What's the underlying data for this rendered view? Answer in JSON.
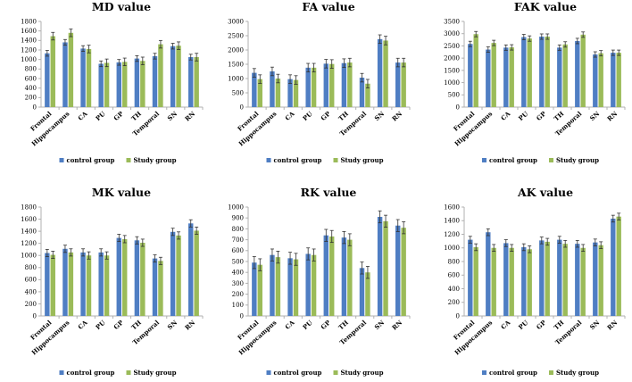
{
  "legend": {
    "control_label": "control group",
    "study_label": "Study group"
  },
  "colors": {
    "control": "#4F7EC3",
    "study": "#9BBB59",
    "axis": "#B0B0B0",
    "error": "#333333"
  },
  "chart_data": [
    {
      "type": "bar",
      "title": "MD value",
      "categories": [
        "Frontal",
        "Hippocampus",
        "CA",
        "PU",
        "GP",
        "TH",
        "Temporal",
        "SN",
        "RN"
      ],
      "ylim": [
        0,
        1800
      ],
      "yticks": [
        0,
        200,
        400,
        600,
        800,
        1000,
        1200,
        1400,
        1600,
        1800
      ],
      "series": [
        {
          "name": "control group",
          "values": [
            1130,
            1360,
            1230,
            910,
            940,
            1020,
            1070,
            1280,
            1050
          ],
          "errors": [
            60,
            60,
            60,
            60,
            60,
            60,
            60,
            60,
            60
          ]
        },
        {
          "name": "Study group",
          "values": [
            1490,
            1560,
            1220,
            930,
            950,
            970,
            1320,
            1290,
            1050
          ],
          "errors": [
            80,
            80,
            80,
            80,
            80,
            80,
            80,
            80,
            80
          ]
        }
      ]
    },
    {
      "type": "bar",
      "title": "FA value",
      "categories": [
        "Frontal",
        "Hippocampus",
        "CA",
        "PU",
        "GP",
        "TH",
        "Temporal",
        "SN",
        "RN"
      ],
      "ylim": [
        0,
        3000
      ],
      "yticks": [
        0,
        500,
        1000,
        1500,
        2000,
        2500,
        3000
      ],
      "series": [
        {
          "name": "control group",
          "values": [
            1200,
            1250,
            980,
            1380,
            1520,
            1540,
            1030,
            2380,
            1560
          ],
          "errors": [
            150,
            150,
            150,
            150,
            150,
            150,
            150,
            150,
            150
          ]
        },
        {
          "name": "Study group",
          "values": [
            980,
            1000,
            950,
            1380,
            1510,
            1560,
            820,
            2330,
            1560
          ],
          "errors": [
            150,
            150,
            150,
            150,
            150,
            150,
            150,
            150,
            150
          ]
        }
      ]
    },
    {
      "type": "bar",
      "title": "FAK value",
      "categories": [
        "Frontal",
        "Hippocampus",
        "CA",
        "PU",
        "GP",
        "TH",
        "Temporal",
        "SN",
        "RN"
      ],
      "ylim": [
        0,
        3500
      ],
      "yticks": [
        0,
        500,
        1000,
        1500,
        2000,
        2500,
        3000,
        3500
      ],
      "series": [
        {
          "name": "control group",
          "values": [
            2580,
            2350,
            2430,
            2860,
            2880,
            2430,
            2700,
            2150,
            2220
          ],
          "errors": [
            110,
            110,
            110,
            110,
            110,
            110,
            110,
            110,
            110
          ]
        },
        {
          "name": "Study group",
          "values": [
            2980,
            2620,
            2440,
            2800,
            2880,
            2560,
            2960,
            2200,
            2220
          ],
          "errors": [
            110,
            110,
            110,
            110,
            110,
            110,
            110,
            110,
            110
          ]
        }
      ]
    },
    {
      "type": "bar",
      "title": "MK value",
      "categories": [
        "Frontal",
        "Hippocampus",
        "CA",
        "PU",
        "GP",
        "TH",
        "Temporal",
        "SN",
        "RN"
      ],
      "ylim": [
        0,
        1800
      ],
      "yticks": [
        0,
        200,
        400,
        600,
        800,
        1000,
        1200,
        1400,
        1600,
        1800
      ],
      "series": [
        {
          "name": "control group",
          "values": [
            1040,
            1110,
            1050,
            1050,
            1290,
            1250,
            950,
            1390,
            1530
          ],
          "errors": [
            60,
            60,
            60,
            60,
            60,
            60,
            60,
            60,
            60
          ]
        },
        {
          "name": "Study group",
          "values": [
            1010,
            1050,
            1000,
            1000,
            1270,
            1210,
            910,
            1330,
            1410
          ],
          "errors": [
            60,
            60,
            60,
            60,
            60,
            60,
            60,
            60,
            60
          ]
        }
      ]
    },
    {
      "type": "bar",
      "title": "RK value",
      "categories": [
        "Frontal",
        "Hippocampus",
        "CA",
        "PU",
        "GP",
        "TH",
        "Temporal",
        "SN",
        "RN"
      ],
      "ylim": [
        0,
        1000
      ],
      "yticks": [
        0,
        100,
        200,
        300,
        400,
        500,
        600,
        700,
        800,
        900,
        1000
      ],
      "series": [
        {
          "name": "control group",
          "values": [
            490,
            560,
            530,
            570,
            740,
            720,
            440,
            910,
            830
          ],
          "errors": [
            55,
            55,
            55,
            55,
            55,
            55,
            55,
            55,
            55
          ]
        },
        {
          "name": "Study group",
          "values": [
            470,
            540,
            520,
            560,
            730,
            700,
            400,
            870,
            810
          ],
          "errors": [
            55,
            55,
            55,
            55,
            55,
            55,
            55,
            55,
            55
          ]
        }
      ]
    },
    {
      "type": "bar",
      "title": "AK value",
      "categories": [
        "Frontal",
        "Hippocampus",
        "CA",
        "PU",
        "GP",
        "TH",
        "Temporal",
        "SN",
        "RN"
      ],
      "ylim": [
        0,
        1600
      ],
      "yticks": [
        0,
        200,
        400,
        600,
        800,
        1000,
        1200,
        1400,
        1600
      ],
      "series": [
        {
          "name": "control group",
          "values": [
            1120,
            1230,
            1070,
            1010,
            1110,
            1120,
            1060,
            1080,
            1430
          ],
          "errors": [
            50,
            50,
            50,
            50,
            50,
            50,
            50,
            50,
            50
          ]
        },
        {
          "name": "Study group",
          "values": [
            1010,
            1000,
            1000,
            980,
            1090,
            1060,
            1000,
            1040,
            1460
          ],
          "errors": [
            50,
            50,
            50,
            50,
            50,
            50,
            50,
            50,
            50
          ]
        }
      ]
    }
  ]
}
